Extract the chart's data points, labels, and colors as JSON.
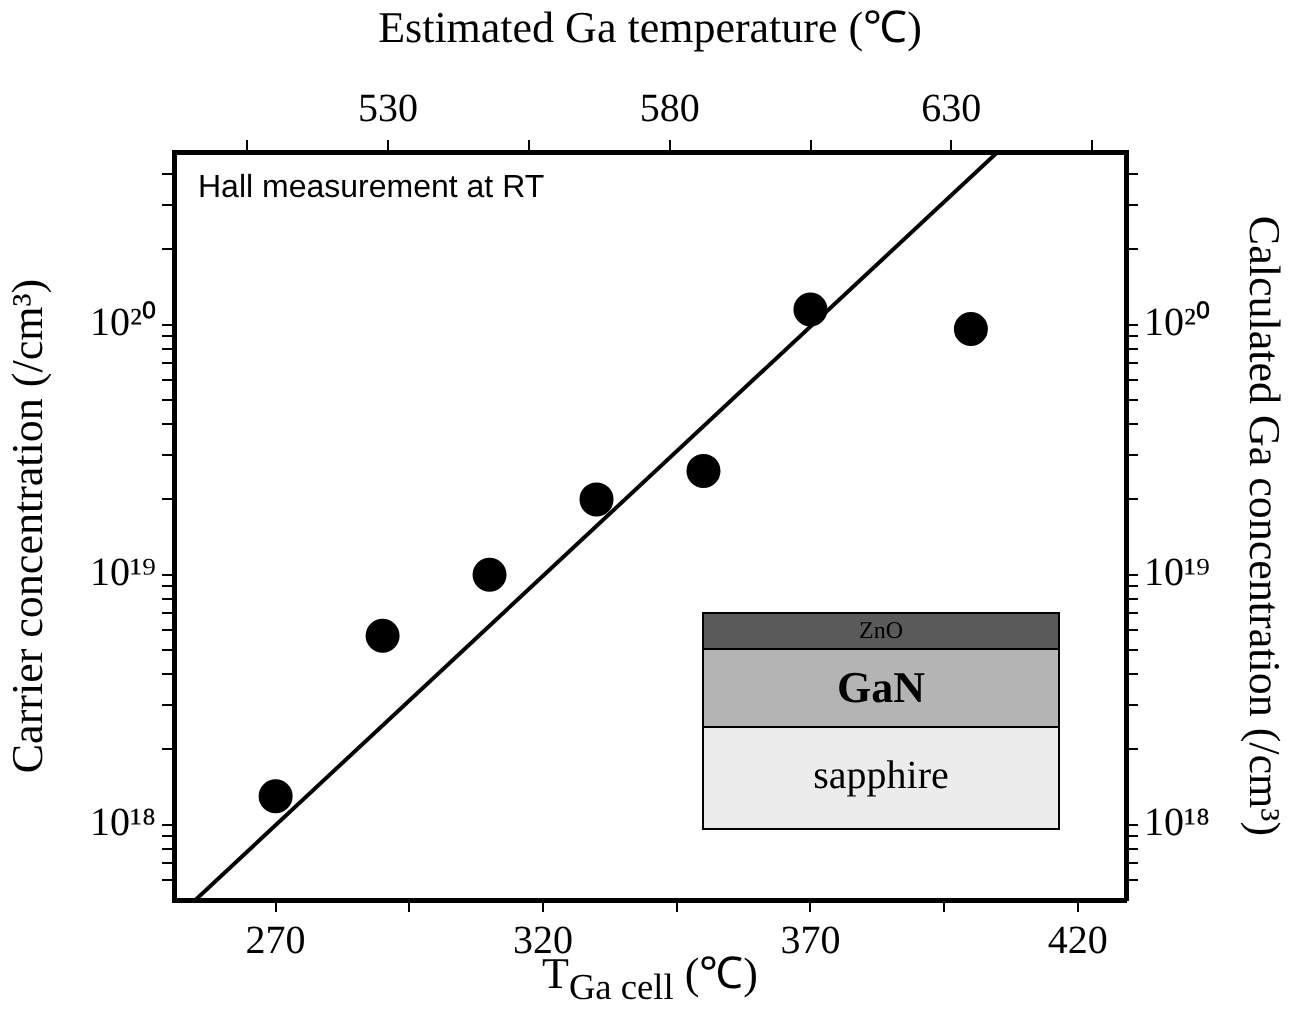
{
  "chart_data": {
    "type": "scatter",
    "xlabel": "T$_{Ga cell}$ (℃)",
    "ylabel": "Carrier concentration (/cm³)",
    "y2label": "Calculated Ga concentration (/cm³)",
    "x2label": "Estimated Ga temperature (℃)",
    "xlim": [
      251,
      429
    ],
    "xticks": [
      270,
      {
        "value": 295,
        "label": null
      },
      320,
      {
        "value": 345,
        "label": null
      },
      370,
      {
        "value": 395,
        "label": null
      },
      420
    ],
    "x2lim": [
      492,
      661
    ],
    "x2ticks": [
      {
        "value": 505,
        "label": null
      },
      530,
      {
        "value": 555,
        "label": null
      },
      580,
      {
        "value": 605,
        "label": null
      },
      630,
      {
        "value": 655,
        "label": null
      }
    ],
    "ylim": [
      5e+17,
      4.9e+20
    ],
    "yticks": [
      {
        "value": 6e+17,
        "label": null
      },
      {
        "value": 7e+17,
        "label": null
      },
      {
        "value": 8e+17,
        "label": null
      },
      {
        "value": 9e+17,
        "label": null
      },
      {
        "value": 1e+18,
        "label": "10¹⁸"
      },
      {
        "value": 2e+18,
        "label": null
      },
      {
        "value": 3e+18,
        "label": null
      },
      {
        "value": 4e+18,
        "label": null
      },
      {
        "value": 5e+18,
        "label": null
      },
      {
        "value": 6e+18,
        "label": null
      },
      {
        "value": 7e+18,
        "label": null
      },
      {
        "value": 8e+18,
        "label": null
      },
      {
        "value": 9e+18,
        "label": null
      },
      {
        "value": 1e+19,
        "label": "10¹⁹"
      },
      {
        "value": 2e+19,
        "label": null
      },
      {
        "value": 3e+19,
        "label": null
      },
      {
        "value": 4e+19,
        "label": null
      },
      {
        "value": 5e+19,
        "label": null
      },
      {
        "value": 6e+19,
        "label": null
      },
      {
        "value": 7e+19,
        "label": null
      },
      {
        "value": 8e+19,
        "label": null
      },
      {
        "value": 9e+19,
        "label": null
      },
      {
        "value": 1e+20,
        "label": "10²⁰"
      },
      {
        "value": 2e+20,
        "label": null
      },
      {
        "value": 3e+20,
        "label": null
      },
      {
        "value": 4e+20,
        "label": null
      }
    ],
    "log": "y",
    "grid": false,
    "legend": false,
    "series": [
      {
        "type": "scatter",
        "color": "#000000",
        "marker": "circle",
        "x": [
          270,
          290,
          310,
          330,
          350,
          370,
          400
        ],
        "values": [
          1.3e+18,
          5.7e+18,
          1e+19,
          2e+19,
          2.6e+19,
          1.15e+20,
          9.6e+19
        ]
      },
      {
        "type": "line",
        "color": "#000000",
        "line_style": "solid",
        "marker": "none",
        "x": [
          255,
          405
        ],
        "values": [
          5e+17,
          4.9e+20
        ]
      }
    ],
    "annotations": [
      "Hall measurement at RT",
      "ZnO",
      "GaN",
      "sapphire"
    ]
  }
}
